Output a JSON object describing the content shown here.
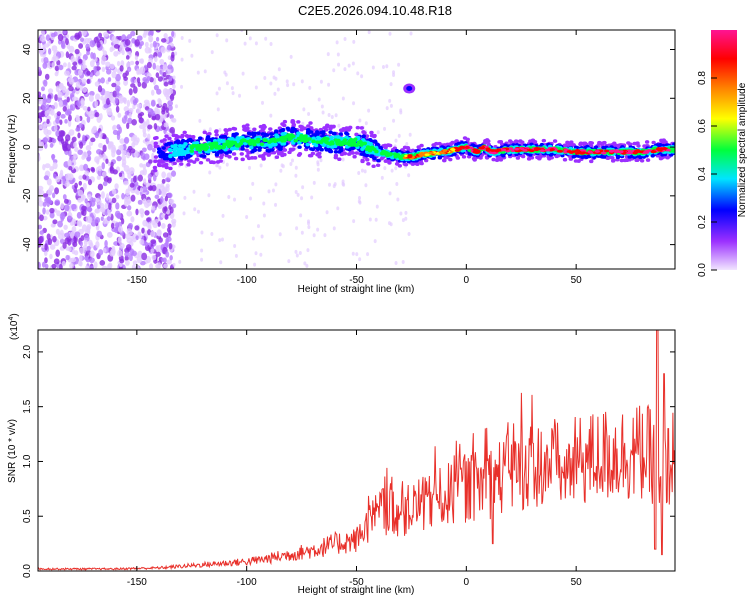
{
  "title": "C2E5.2026.094.10.48.R18",
  "colors": {
    "snr_line": "#e8302a",
    "axis": "#000000"
  },
  "chart_data": [
    {
      "type": "heatmap",
      "xlabel": "Height of straight line (km)",
      "ylabel": "Frequency (Hz)",
      "xlim": [
        -195,
        95
      ],
      "ylim": [
        -50,
        48
      ],
      "x_ticks": [
        -150,
        -100,
        -50,
        0,
        50
      ],
      "y_ticks": [
        -40,
        -20,
        0,
        20,
        40
      ],
      "colorbar": {
        "label": "Normalized spectral amplitude",
        "range": [
          0,
          1
        ],
        "ticks": [
          "0.0",
          "0.2",
          "0.4",
          "0.6",
          "0.8"
        ],
        "colormap": [
          "#f2e6ff",
          "#9b30ff",
          "#0000ff",
          "#00e5ff",
          "#00ff3c",
          "#ffff00",
          "#ff8000",
          "#ff0000",
          "#ff1493"
        ]
      },
      "ridge": [
        [
          -140,
          -3
        ],
        [
          -130,
          -1
        ],
        [
          -120,
          0
        ],
        [
          -110,
          1
        ],
        [
          -100,
          2
        ],
        [
          -90,
          2
        ],
        [
          -80,
          4
        ],
        [
          -70,
          3
        ],
        [
          -60,
          2
        ],
        [
          -50,
          2
        ],
        [
          -45,
          0
        ],
        [
          -40,
          -2
        ],
        [
          -35,
          -3
        ],
        [
          -30,
          -4
        ],
        [
          -25,
          -4
        ],
        [
          -20,
          -3
        ],
        [
          -10,
          -2
        ],
        [
          0,
          0
        ],
        [
          5,
          -2
        ],
        [
          8,
          0
        ],
        [
          12,
          -2
        ],
        [
          20,
          -1
        ],
        [
          30,
          -1
        ],
        [
          40,
          -1
        ],
        [
          50,
          -2
        ],
        [
          60,
          -2
        ],
        [
          70,
          -2
        ],
        [
          80,
          -2
        ],
        [
          88,
          -1
        ],
        [
          95,
          -1
        ]
      ],
      "isolated_blob": [
        -26,
        24
      ]
    },
    {
      "type": "line",
      "xlabel": "Height of straight line (km)",
      "ylabel": "SNR (10 * v/v)",
      "y_scale_label": "(x10",
      "y_scale_exp": "4",
      "xlim": [
        -195,
        95
      ],
      "ylim": [
        0,
        2.2
      ],
      "x_ticks": [
        -150,
        -100,
        -50,
        0,
        50
      ],
      "y_ticks": [
        "0.0",
        "0.5",
        "1.0",
        "1.5",
        "2.0"
      ],
      "envelope": [
        [
          -195,
          0.02
        ],
        [
          -160,
          0.02
        ],
        [
          -140,
          0.03
        ],
        [
          -120,
          0.06
        ],
        [
          -100,
          0.09
        ],
        [
          -90,
          0.12
        ],
        [
          -80,
          0.16
        ],
        [
          -70,
          0.2
        ],
        [
          -60,
          0.26
        ],
        [
          -50,
          0.3
        ],
        [
          -45,
          0.45
        ],
        [
          -40,
          0.55
        ],
        [
          -35,
          0.6
        ],
        [
          -30,
          0.55
        ],
        [
          -25,
          0.6
        ],
        [
          -20,
          0.62
        ],
        [
          -10,
          0.72
        ],
        [
          0,
          0.8
        ],
        [
          10,
          0.85
        ],
        [
          20,
          0.95
        ],
        [
          30,
          1.02
        ],
        [
          40,
          1.05
        ],
        [
          45,
          0.95
        ],
        [
          50,
          1.05
        ],
        [
          60,
          1.1
        ],
        [
          70,
          1.13
        ],
        [
          80,
          1.14
        ],
        [
          85,
          1.1
        ],
        [
          88,
          0.7
        ],
        [
          90,
          0.9
        ],
        [
          95,
          1.15
        ]
      ],
      "spikes": [
        [
          -38,
          0.75
        ],
        [
          -27,
          0.65
        ],
        [
          -15,
          0.7
        ],
        [
          -5,
          0.82
        ],
        [
          12,
          0.25
        ],
        [
          44,
          0.9
        ],
        [
          86,
          0.2
        ],
        [
          87,
          2.2
        ],
        [
          89,
          0.15
        ],
        [
          90,
          1.8
        ],
        [
          92,
          1.3
        ]
      ]
    }
  ]
}
